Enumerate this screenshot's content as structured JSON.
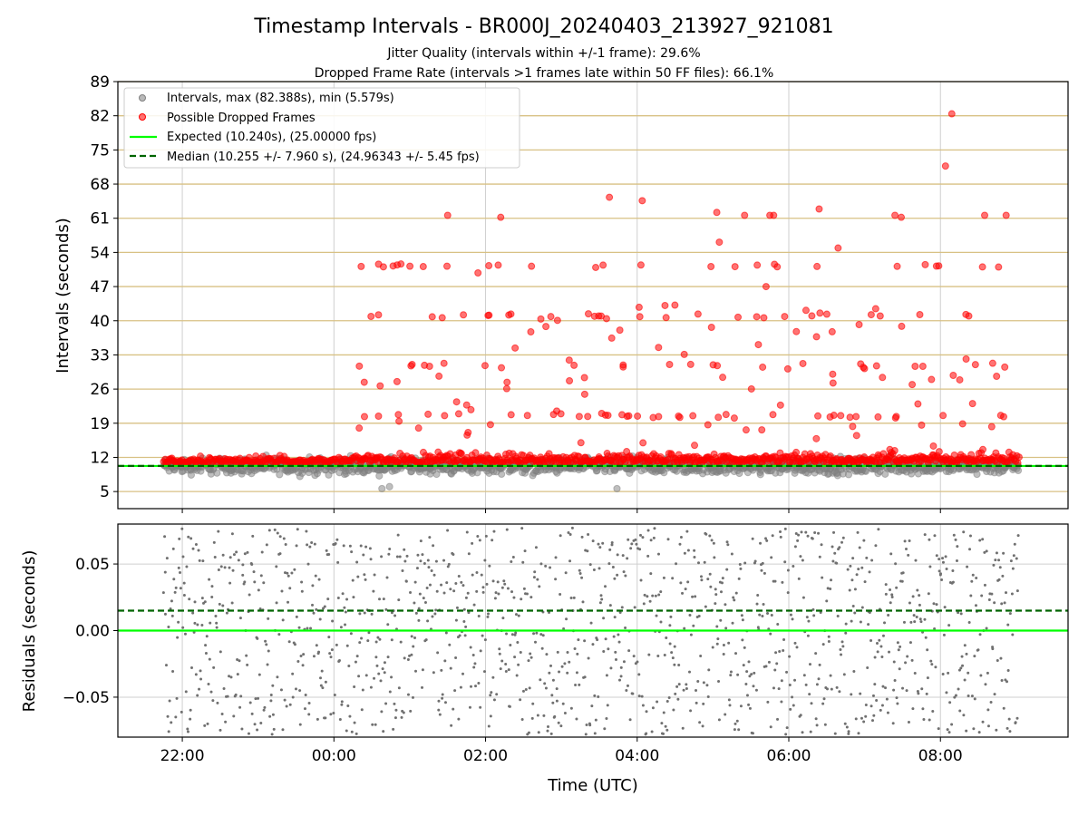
{
  "chart_data": [
    {
      "type": "scatter",
      "title": "Timestamp Intervals - BR000J_20240403_213927_921081",
      "subtitle_1": "Jitter Quality (intervals within +/-1 frame): 29.6%",
      "subtitle_2": "Dropped Frame Rate (intervals >1 frames late within 50 FF files): 66.1%",
      "xlabel": "",
      "ylabel": "Intervals (seconds)",
      "x_range": [
        "21:09",
        "09:41"
      ],
      "ylim": [
        1.5,
        89
      ],
      "y_ticks": [
        "5",
        "12",
        "19",
        "26",
        "33",
        "40",
        "47",
        "54",
        "61",
        "68",
        "75",
        "82",
        "89"
      ],
      "x_ticks": [
        "22:00",
        "00:00",
        "02:00",
        "04:00",
        "06:00",
        "08:00"
      ],
      "grid": "horizontal gold lines at y ticks, vertical gray lines at x ticks",
      "legend_position": "top-left",
      "series": [
        {
          "name": "Intervals, max (82.388s), min (5.579s)",
          "kind": "gray scatter",
          "color": "#808080",
          "extremes": [
            {
              "x": "00:38",
              "y": 5.6
            },
            {
              "x": "00:44",
              "y": 6.0
            },
            {
              "x": "03:44",
              "y": 5.6
            }
          ]
        },
        {
          "name": "Possible Dropped Frames",
          "kind": "red scatter",
          "color": "#ff0000",
          "points": [
            {
              "x": "08:09",
              "y": 82.4
            },
            {
              "x": "08:04",
              "y": 71.7
            },
            {
              "x": "03:38",
              "y": 65.3
            },
            {
              "x": "04:04",
              "y": 64.6
            },
            {
              "x": "06:24",
              "y": 62.9
            },
            {
              "x": "05:03",
              "y": 62.2
            },
            {
              "x": "01:30",
              "y": 61.6
            },
            {
              "x": "02:12",
              "y": 61.2
            },
            {
              "x": "05:25",
              "y": 61.6
            },
            {
              "x": "05:45",
              "y": 61.6
            },
            {
              "x": "05:48",
              "y": 61.6
            },
            {
              "x": "07:24",
              "y": 61.6
            },
            {
              "x": "07:29",
              "y": 61.2
            },
            {
              "x": "08:35",
              "y": 61.6
            },
            {
              "x": "08:52",
              "y": 61.6
            },
            {
              "x": "05:05",
              "y": 56.1
            },
            {
              "x": "06:39",
              "y": 54.9
            },
            {
              "x": "02:10",
              "y": 51.4
            },
            {
              "x": "03:33",
              "y": 51.4
            },
            {
              "x": "05:35",
              "y": 51.4
            },
            {
              "x": "08:46",
              "y": 51.0
            },
            {
              "x": "01:54",
              "y": 49.8
            },
            {
              "x": "00:20",
              "y": 18.0
            },
            {
              "x": "00:24",
              "y": 27.4
            },
            {
              "x": "01:07",
              "y": 18.0
            },
            {
              "x": "02:17",
              "y": 27.4
            },
            {
              "x": "05:42",
              "y": 47.0
            }
          ]
        },
        {
          "name": "Expected (10.240s), (25.00000 fps)",
          "kind": "line",
          "color": "#00ff00",
          "y": 10.24
        },
        {
          "name": "Median (10.255 +/- 7.960 s), (24.96343 +/- 5.45 fps)",
          "kind": "dashed line",
          "color": "#006400",
          "y": 10.255
        }
      ]
    },
    {
      "type": "scatter",
      "title": "",
      "xlabel": "Time (UTC)",
      "ylabel": "Residuals (seconds)",
      "ylim": [
        -0.08,
        0.08
      ],
      "y_ticks": [
        "−0.05",
        "0.00",
        "0.05"
      ],
      "x_ticks": [
        "22:00",
        "00:00",
        "02:00",
        "04:00",
        "06:00",
        "08:00"
      ],
      "series": [
        {
          "kind": "gray points",
          "color": "#707070",
          "range": [
            -0.08,
            0.08
          ]
        },
        {
          "kind": "line",
          "color": "#00ff00",
          "y": 0.0
        },
        {
          "kind": "dashed line",
          "color": "#006400",
          "y": 0.015
        }
      ]
    }
  ]
}
